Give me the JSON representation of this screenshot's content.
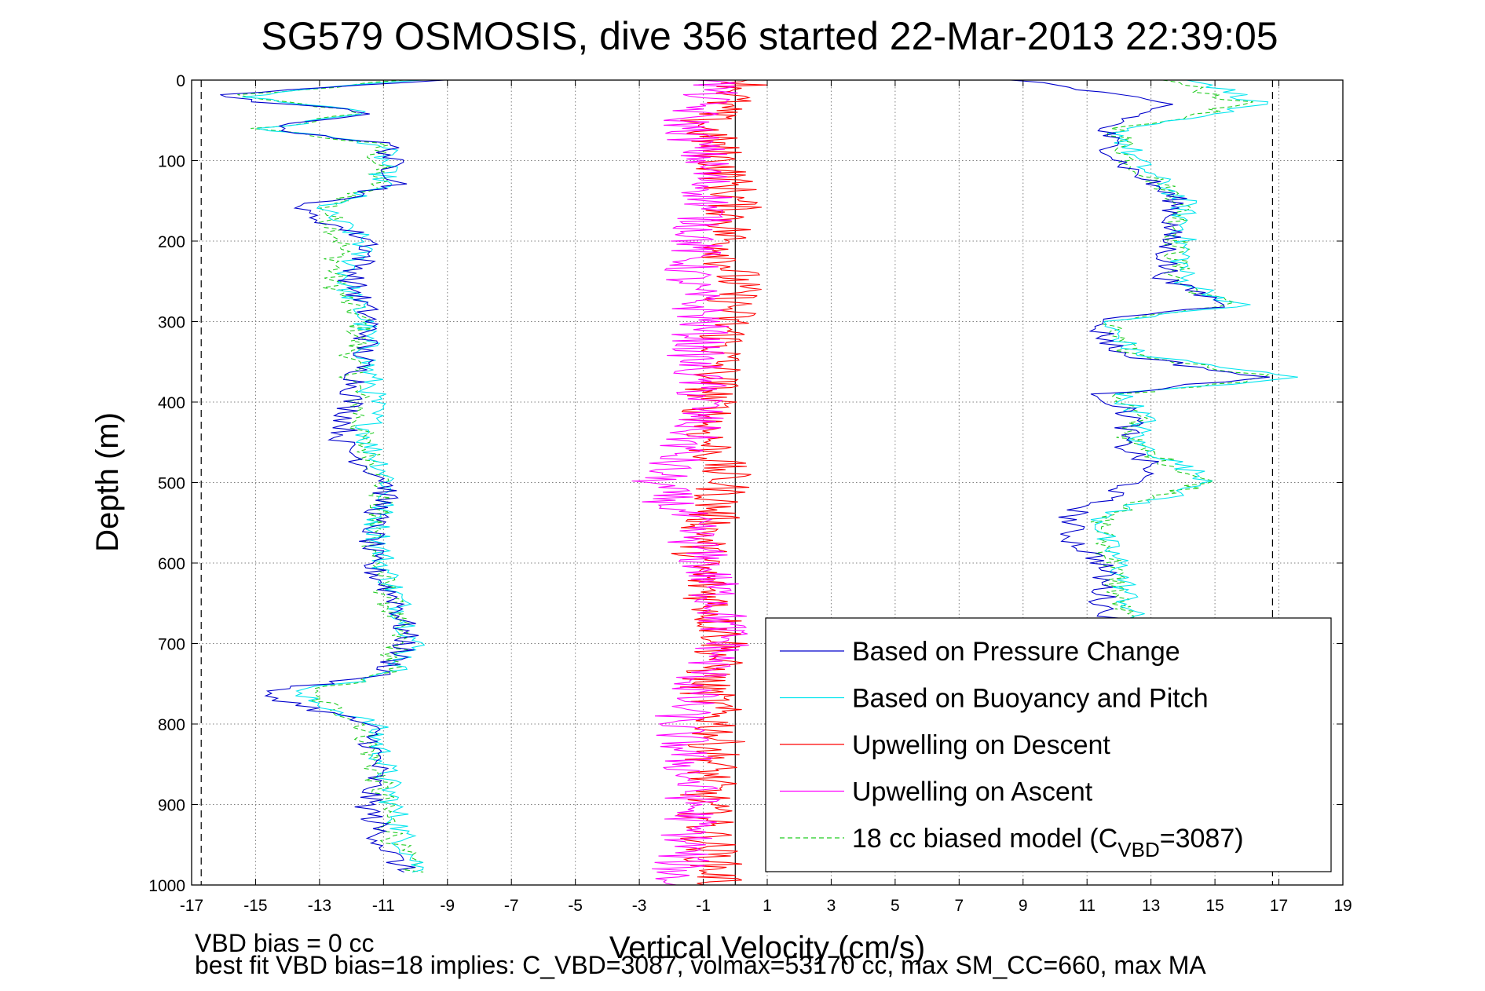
{
  "chart_data": {
    "type": "line",
    "title": "SG579 OSMOSIS, dive 356 started 22-Mar-2013 22:39:05",
    "xlabel": "Vertical Velocity (cm/s)",
    "ylabel": "Depth (m)",
    "xlim": [
      -17,
      19
    ],
    "ylim": [
      0,
      1000
    ],
    "y_reversed": true,
    "x_ticks": [
      -17,
      -15,
      -13,
      -11,
      -9,
      -7,
      -5,
      -3,
      -1,
      1,
      3,
      5,
      7,
      9,
      11,
      13,
      15,
      17,
      19
    ],
    "y_ticks": [
      0,
      100,
      200,
      300,
      400,
      500,
      600,
      700,
      800,
      900,
      1000
    ],
    "grid": true,
    "reference_lines": [
      {
        "x": -16.7,
        "style": "dashed",
        "color": "#000000"
      },
      {
        "x": 16.8,
        "style": "dashed",
        "color": "#000000"
      },
      {
        "x": 0,
        "style": "solid",
        "color": "#000000"
      }
    ],
    "legend_position": "bottom-right",
    "series": [
      {
        "name": "Based on Pressure Change",
        "color": "#0000cc",
        "style": "solid",
        "descent": {
          "depth": [
            0,
            20,
            40,
            60,
            80,
            100,
            130,
            160,
            200,
            250,
            300,
            350,
            400,
            450,
            480,
            500,
            550,
            600,
            650,
            700,
            740,
            760,
            800,
            850,
            900,
            950,
            985
          ],
          "value": [
            -9.5,
            -16.5,
            -11.5,
            -14.5,
            -10.8,
            -10.8,
            -10.5,
            -13.8,
            -11.3,
            -12.0,
            -11.4,
            -11.7,
            -12.0,
            -12.3,
            -11.5,
            -10.8,
            -11.3,
            -11.5,
            -10.5,
            -10.3,
            -11.0,
            -15.0,
            -11.5,
            -11.2,
            -11.5,
            -11.0,
            -10.3
          ]
        },
        "ascent": {
          "depth": [
            0,
            30,
            60,
            100,
            150,
            200,
            250,
            280,
            300,
            340,
            370,
            390,
            420,
            450,
            480,
            500,
            540,
            570,
            600,
            650,
            680
          ],
          "value": [
            9.0,
            13.5,
            11.5,
            12.0,
            13.8,
            13.5,
            13.5,
            15.5,
            11.2,
            12.0,
            16.5,
            11.5,
            12.5,
            12.0,
            13.0,
            12.5,
            10.5,
            10.5,
            11.5,
            11.5,
            12.0
          ]
        }
      },
      {
        "name": "Based on Buoyancy and Pitch",
        "color": "#00e5ee",
        "style": "solid",
        "descent": {
          "depth": [
            0,
            20,
            40,
            60,
            80,
            100,
            130,
            160,
            200,
            250,
            300,
            350,
            400,
            450,
            480,
            500,
            550,
            600,
            650,
            700,
            740,
            760,
            800,
            850,
            900,
            950,
            985
          ],
          "value": [
            -10.0,
            -15.5,
            -11.3,
            -14.8,
            -11.0,
            -11.0,
            -11.0,
            -13.0,
            -11.6,
            -12.2,
            -11.6,
            -11.5,
            -11.3,
            -11.5,
            -11.0,
            -10.8,
            -11.2,
            -11.0,
            -10.5,
            -10.0,
            -10.8,
            -14.0,
            -11.3,
            -11.0,
            -10.7,
            -10.3,
            -9.8
          ]
        },
        "ascent": {
          "depth": [
            0,
            30,
            60,
            100,
            150,
            200,
            250,
            280,
            300,
            340,
            370,
            390,
            420,
            450,
            480,
            500,
            540,
            570,
            600,
            650,
            680
          ],
          "value": [
            14.5,
            16.5,
            12.0,
            12.5,
            14.0,
            14.0,
            14.0,
            15.8,
            11.5,
            12.5,
            17.5,
            12.0,
            12.8,
            12.5,
            14.0,
            15.0,
            11.5,
            11.5,
            12.0,
            12.3,
            12.5
          ]
        }
      },
      {
        "name": "Upwelling on Descent",
        "color": "#ff0000",
        "style": "solid",
        "depth": [
          0,
          50,
          100,
          150,
          200,
          250,
          300,
          350,
          400,
          450,
          500,
          550,
          600,
          650,
          700,
          750,
          800,
          850,
          900,
          950,
          1000
        ],
        "value": [
          0.5,
          -1.0,
          -0.5,
          0.0,
          -0.3,
          0.0,
          -0.2,
          -0.5,
          -0.8,
          -0.8,
          -0.3,
          -0.8,
          -1.2,
          -0.7,
          -0.3,
          -1.0,
          -0.5,
          -0.7,
          -1.0,
          -0.8,
          -0.5
        ]
      },
      {
        "name": "Upwelling on Ascent",
        "color": "#ff00ff",
        "style": "solid",
        "depth": [
          0,
          50,
          100,
          150,
          200,
          250,
          300,
          350,
          400,
          450,
          500,
          550,
          600,
          650,
          700,
          750,
          800,
          850,
          900,
          950,
          1000
        ],
        "value": [
          -0.5,
          -1.5,
          -1.0,
          -0.8,
          -1.2,
          -1.5,
          -1.0,
          -1.3,
          -1.0,
          -1.5,
          -2.5,
          -1.5,
          -1.0,
          -0.5,
          -0.3,
          -1.2,
          -1.8,
          -1.5,
          -1.3,
          -1.5,
          -2.0
        ]
      },
      {
        "name": "18 cc biased model (C",
        "name_subscript": "VBD",
        "name_suffix": "=3087)",
        "color": "#22cc22",
        "style": "dashed",
        "descent": {
          "depth": [
            0,
            20,
            40,
            60,
            80,
            100,
            130,
            160,
            200,
            250,
            300,
            350,
            400,
            450,
            480,
            500,
            550,
            600,
            650,
            700,
            740,
            760,
            800,
            850,
            900,
            950,
            985
          ],
          "value": [
            -10.5,
            -15.8,
            -11.5,
            -14.8,
            -11.2,
            -11.2,
            -11.2,
            -12.8,
            -12.3,
            -12.6,
            -11.7,
            -12.0,
            -11.8,
            -11.7,
            -11.2,
            -11.0,
            -11.3,
            -11.2,
            -10.8,
            -10.5,
            -11.0,
            -13.5,
            -11.6,
            -11.3,
            -11.0,
            -10.6,
            -10.0
          ]
        },
        "ascent": {
          "depth": [
            0,
            30,
            60,
            100,
            150,
            200,
            250,
            280,
            300,
            340,
            370,
            390,
            420,
            450,
            480,
            500,
            540,
            570,
            600,
            650,
            680
          ],
          "value": [
            13.5,
            16.0,
            12.0,
            12.3,
            14.0,
            13.8,
            13.8,
            15.5,
            11.5,
            12.3,
            17.0,
            12.0,
            12.5,
            12.3,
            13.8,
            14.8,
            11.5,
            11.5,
            11.8,
            12.0,
            12.3
          ]
        }
      }
    ],
    "footer": {
      "line1": "VBD bias = 0 cc",
      "line2": "best fit VBD bias=18 implies: C_VBD=3087, volmax=53170 cc, max SM_CC=660, max MA"
    }
  },
  "colors": {
    "pressure": "#0000cc",
    "buoyancy": "#00e5ee",
    "descent": "#ff0000",
    "ascent": "#ff00ff",
    "model": "#22cc22"
  }
}
